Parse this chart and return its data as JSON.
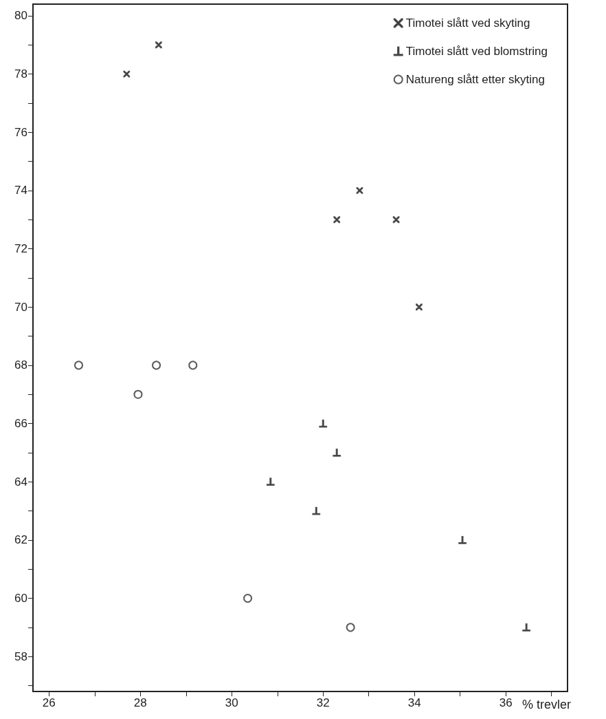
{
  "chart_data": {
    "type": "scatter",
    "xlabel": "% trevler",
    "xlim": [
      25.65,
      37.35
    ],
    "ylim": [
      56.8,
      80.4
    ],
    "xticks": [
      26,
      {
        "value": 27,
        "label": null
      },
      28,
      {
        "value": 29,
        "label": null
      },
      30,
      {
        "value": 31,
        "label": null
      },
      32,
      {
        "value": 33,
        "label": null
      },
      34,
      {
        "value": 35,
        "label": null
      },
      36,
      {
        "value": 37,
        "label": null
      }
    ],
    "yticks": [
      {
        "value": 57,
        "label": null
      },
      58,
      {
        "value": 59,
        "label": null
      },
      60,
      {
        "value": 61,
        "label": null
      },
      62,
      {
        "value": 63,
        "label": null
      },
      64,
      {
        "value": 65,
        "label": null
      },
      66,
      {
        "value": 67,
        "label": null
      },
      68,
      {
        "value": 69,
        "label": null
      },
      70,
      {
        "value": 71,
        "label": null
      },
      72,
      {
        "value": 73,
        "label": null
      },
      74,
      {
        "value": 75,
        "label": null
      },
      76,
      {
        "value": 77,
        "label": null
      },
      78,
      {
        "value": 79,
        "label": null
      },
      80
    ],
    "grid": false,
    "legend": "top right",
    "series": [
      {
        "name": "Timotei slått ved skyting",
        "color": "#333333",
        "marker": "cross",
        "x": [
          27.7,
          28.4,
          32.3,
          32.8,
          33.6,
          34.1
        ],
        "values": [
          78,
          79,
          73,
          74,
          73,
          70
        ]
      },
      {
        "name": "Timotei slått ved blomstring",
        "color": "#333333",
        "x": [
          32.0,
          32.3,
          30.85,
          31.85,
          35.05,
          36.45
        ],
        "values": [
          66,
          65,
          64,
          63,
          62,
          59
        ]
      },
      {
        "name": "Natureng slått etter skyting",
        "color": "#333333",
        "marker": "circle",
        "x": [
          26.65,
          27.95,
          28.35,
          29.15,
          30.35,
          32.6
        ],
        "values": [
          68,
          67,
          68,
          68,
          60,
          59
        ]
      }
    ]
  }
}
